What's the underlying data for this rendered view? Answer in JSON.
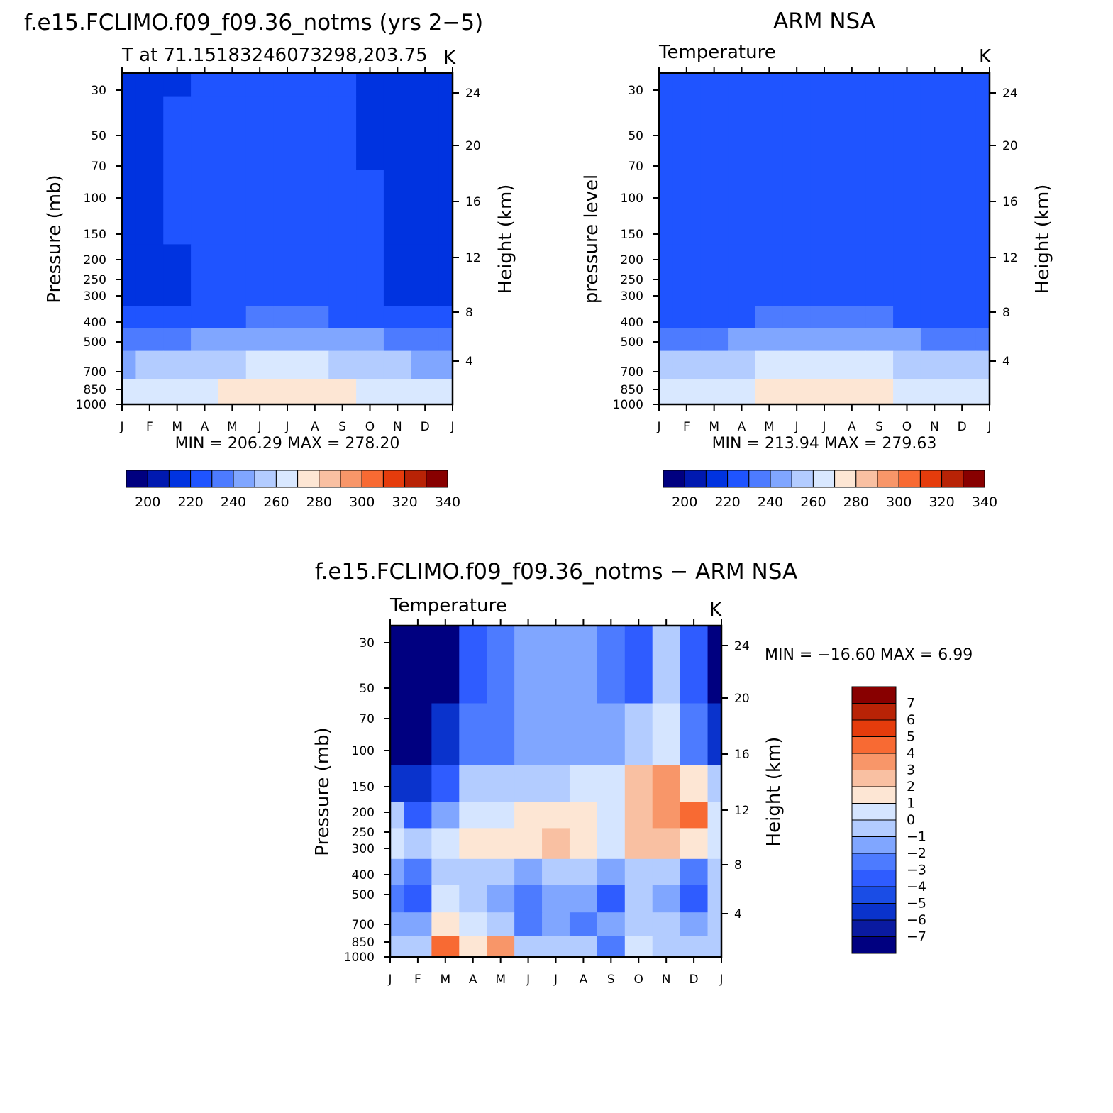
{
  "chart_data": [
    {
      "type": "heatmap",
      "title": "f.e15.FCLIMO.f09_f09.36_notms (yrs 2−5)",
      "subtitle": "T at 71.15183246073298,203.75",
      "units": "K",
      "ylabel_left": "Pressure (mb)",
      "ylabel_right": "Height (km)",
      "x_ticks": [
        "J",
        "F",
        "M",
        "A",
        "M",
        "J",
        "J",
        "A",
        "S",
        "O",
        "N",
        "D",
        "J"
      ],
      "y_ticks_pressure": [
        "30",
        "50",
        "70",
        "100",
        "150",
        "200",
        "250",
        "300",
        "400",
        "500",
        "700",
        "850",
        "1000"
      ],
      "y_ticks_height": [
        "24",
        "20",
        "16",
        "12",
        "8",
        "4"
      ],
      "min_max_text": "MIN = 206.29 MAX = 278.20",
      "level_bands": [
        {
          "pressure": [
            22,
            33
          ],
          "values": [
            207,
            211,
            213,
            218,
            218,
            218,
            218,
            218,
            216,
            213,
            213,
            213,
            207
          ]
        },
        {
          "pressure": [
            33,
            74
          ],
          "values": [
            209,
            213,
            216,
            218,
            218,
            218,
            218,
            218,
            216,
            213,
            213,
            213,
            210
          ]
        },
        {
          "pressure": [
            74,
            170
          ],
          "values": [
            213,
            213,
            216,
            218,
            218,
            218,
            218,
            218,
            218,
            216,
            213,
            213,
            213
          ]
        },
        {
          "pressure": [
            170,
            340
          ],
          "values": [
            213,
            213,
            213,
            218,
            218,
            218,
            218,
            218,
            216,
            216,
            213,
            213,
            213
          ]
        },
        {
          "pressure": [
            340,
            430
          ],
          "values": [
            221,
            221,
            221,
            222,
            224,
            225,
            227,
            225,
            223,
            222,
            221,
            221,
            221
          ]
        },
        {
          "pressure": [
            430,
            560
          ],
          "values": [
            232,
            233,
            234,
            236,
            239,
            241,
            244,
            242,
            238,
            235,
            233,
            232,
            232
          ]
        },
        {
          "pressure": [
            560,
            760
          ],
          "values": [
            244,
            245,
            248,
            251,
            254,
            257,
            260,
            258,
            254,
            250,
            246,
            244,
            244
          ]
        },
        {
          "pressure": [
            760,
            1000
          ],
          "values": [
            256,
            256,
            258,
            262,
            266,
            268,
            272,
            270,
            266,
            262,
            258,
            256,
            256
          ]
        }
      ],
      "colorbar": {
        "labels": [
          "200",
          "220",
          "240",
          "260",
          "280",
          "300",
          "320",
          "340"
        ]
      }
    },
    {
      "type": "heatmap",
      "title": "ARM NSA",
      "subtitle": "Temperature",
      "units": "K",
      "ylabel_left": "pressure level",
      "ylabel_right": "Height (km)",
      "x_ticks": [
        "J",
        "F",
        "M",
        "A",
        "M",
        "J",
        "J",
        "A",
        "S",
        "O",
        "N",
        "D",
        "J"
      ],
      "y_ticks_pressure": [
        "30",
        "50",
        "70",
        "100",
        "150",
        "200",
        "250",
        "300",
        "400",
        "500",
        "700",
        "850",
        "1000"
      ],
      "y_ticks_height": [
        "24",
        "20",
        "16",
        "12",
        "8",
        "4"
      ],
      "min_max_text": "MIN = 213.94 MAX = 279.63",
      "level_bands": [
        {
          "pressure": [
            22,
            170
          ],
          "values": [
            218,
            218,
            218,
            218,
            218,
            218,
            218,
            218,
            218,
            216,
            216,
            216,
            218
          ]
        },
        {
          "pressure": [
            170,
            340
          ],
          "values": [
            216,
            216,
            216,
            218,
            218,
            218,
            218,
            218,
            216,
            216,
            216,
            216,
            216
          ]
        },
        {
          "pressure": [
            340,
            430
          ],
          "values": [
            221,
            222,
            222,
            223,
            225,
            227,
            228,
            227,
            225,
            223,
            221,
            221,
            221
          ]
        },
        {
          "pressure": [
            430,
            560
          ],
          "values": [
            232,
            233,
            234,
            236,
            239,
            242,
            244,
            242,
            239,
            236,
            233,
            232,
            232
          ]
        },
        {
          "pressure": [
            560,
            760
          ],
          "values": [
            245,
            246,
            248,
            251,
            255,
            258,
            261,
            259,
            255,
            251,
            247,
            245,
            245
          ]
        },
        {
          "pressure": [
            760,
            1000
          ],
          "values": [
            256,
            257,
            259,
            264,
            268,
            272,
            274,
            272,
            268,
            262,
            258,
            256,
            256
          ]
        }
      ],
      "colorbar": {
        "labels": [
          "200",
          "220",
          "240",
          "260",
          "280",
          "300",
          "320",
          "340"
        ]
      }
    },
    {
      "type": "heatmap",
      "title": "f.e15.FCLIMO.f09_f09.36_notms − ARM NSA",
      "subtitle": "Temperature",
      "units": "K",
      "ylabel_left": "Pressure (mb)",
      "ylabel_right": "Height (km)",
      "x_ticks": [
        "J",
        "F",
        "M",
        "A",
        "M",
        "J",
        "J",
        "A",
        "S",
        "O",
        "N",
        "D",
        "J"
      ],
      "y_ticks_pressure": [
        "30",
        "50",
        "70",
        "100",
        "150",
        "200",
        "250",
        "300",
        "400",
        "500",
        "700",
        "850",
        "1000"
      ],
      "y_ticks_height": [
        "24",
        "20",
        "16",
        "12",
        "8",
        "4"
      ],
      "min_max_text": "MIN = −16.60 MAX =    6.99",
      "level_bands": [
        {
          "pressure": [
            22,
            60
          ],
          "values": [
            -8,
            -8,
            -8,
            -4,
            -3,
            -2,
            -2,
            -2,
            -3,
            -4,
            -1,
            -4,
            -8
          ]
        },
        {
          "pressure": [
            60,
            120
          ],
          "values": [
            -8,
            -8,
            -6,
            -3,
            -3,
            -2,
            -2,
            -2,
            -2,
            -1,
            0.5,
            -3,
            -6
          ]
        },
        {
          "pressure": [
            120,
            180
          ],
          "values": [
            -6,
            -6,
            -4,
            -1,
            -0.5,
            -0.5,
            -0.5,
            0.5,
            0.5,
            2,
            3,
            1,
            -1
          ]
        },
        {
          "pressure": [
            180,
            240
          ],
          "values": [
            -1,
            -4,
            -2,
            0.5,
            0.5,
            1,
            1.5,
            1,
            0.5,
            2.5,
            3.5,
            4.5,
            0.5
          ]
        },
        {
          "pressure": [
            240,
            340
          ],
          "values": [
            0.5,
            -0.5,
            0.5,
            1,
            1.5,
            1.5,
            2,
            1.5,
            0.5,
            2,
            2,
            1.5,
            0.5
          ]
        },
        {
          "pressure": [
            340,
            450
          ],
          "values": [
            -1.5,
            -2.5,
            -0.5,
            -0.5,
            -1,
            -1.5,
            -0.5,
            -0.5,
            -1.5,
            -0.5,
            -1,
            -2.5,
            -1
          ]
        },
        {
          "pressure": [
            450,
            620
          ],
          "values": [
            -2.5,
            -3.5,
            0.5,
            -0.5,
            -1.5,
            -2.5,
            -1.5,
            -1.5,
            -3.5,
            -0.5,
            -2,
            -3.5,
            -1
          ]
        },
        {
          "pressure": [
            620,
            800
          ],
          "values": [
            -1.5,
            -2,
            1.5,
            0.5,
            -0.5,
            -3,
            -2,
            -2.5,
            -2,
            -0.5,
            -1,
            -2,
            -0.5
          ]
        },
        {
          "pressure": [
            800,
            1000
          ],
          "values": [
            -0.5,
            -1,
            4,
            1.5,
            3,
            -1,
            -1,
            -1,
            -3,
            0.5,
            -0.5,
            -1,
            -0.5
          ]
        }
      ],
      "colorbar": {
        "labels": [
          "7",
          "6",
          "5",
          "4",
          "3",
          "2",
          "1",
          "0",
          "−1",
          "−2",
          "−3",
          "−4",
          "−5",
          "−6",
          "−7"
        ]
      }
    }
  ],
  "colors": {
    "abs_palette": [
      "#000080",
      "#0019b0",
      "#0033e0",
      "#1f54ff",
      "#4d7bff",
      "#80a6ff",
      "#b3ccff",
      "#d9e8ff",
      "#fde6d4",
      "#f9c0a2",
      "#f89669",
      "#f86a33",
      "#e53c0c",
      "#b82306",
      "#880000"
    ],
    "diff_palette": [
      "#000080",
      "#0a1aa0",
      "#0a33cc",
      "#1a4de6",
      "#2f5cff",
      "#4d7bff",
      "#80a6ff",
      "#b3ccff",
      "#d5e5ff",
      "#fde6d4",
      "#f9c0a2",
      "#f89669",
      "#f86a33",
      "#e53c0c",
      "#b82306",
      "#880000"
    ]
  }
}
